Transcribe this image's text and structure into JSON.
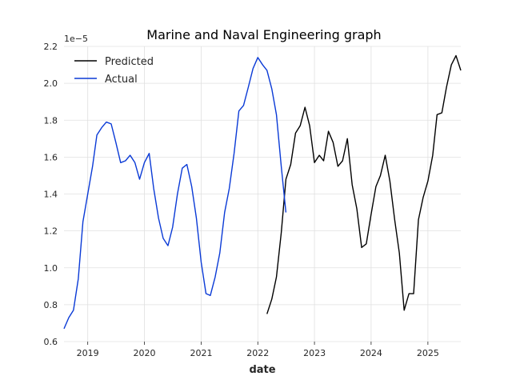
{
  "chart_data": {
    "type": "line",
    "title": "Marine and Naval Engineering graph",
    "xlabel": "date",
    "ylabel": "",
    "y_offset_label": "1e−5",
    "y_scale_multiplier": 1e-05,
    "xlim": [
      "2018-08-01",
      "2025-08-01"
    ],
    "ylim": [
      0.6,
      2.2
    ],
    "x_ticks": [
      "2019",
      "2020",
      "2021",
      "2022",
      "2023",
      "2024",
      "2025"
    ],
    "y_ticks": [
      "0.6",
      "0.8",
      "1.0",
      "1.2",
      "1.4",
      "1.6",
      "1.8",
      "2.0",
      "2.2"
    ],
    "grid": true,
    "legend_position": "top-left",
    "series": [
      {
        "name": "Predicted",
        "color": "#000000",
        "x": [
          "2022-03-01",
          "2022-04-01",
          "2022-05-01",
          "2022-06-01",
          "2022-07-01",
          "2022-08-01",
          "2022-09-01",
          "2022-10-01",
          "2022-11-01",
          "2022-12-01",
          "2023-01-01",
          "2023-02-01",
          "2023-03-01",
          "2023-04-01",
          "2023-05-01",
          "2023-06-01",
          "2023-07-01",
          "2023-08-01",
          "2023-09-01",
          "2023-10-01",
          "2023-11-01",
          "2023-12-01",
          "2024-01-01",
          "2024-02-01",
          "2024-03-01",
          "2024-04-01",
          "2024-05-01",
          "2024-06-01",
          "2024-07-01",
          "2024-08-01",
          "2024-09-01",
          "2024-10-01",
          "2024-11-01",
          "2024-12-01",
          "2025-01-01",
          "2025-02-01",
          "2025-03-01",
          "2025-04-01",
          "2025-05-01",
          "2025-06-01",
          "2025-07-01",
          "2025-08-01"
        ],
        "values": [
          0.75,
          0.83,
          0.95,
          1.19,
          1.48,
          1.56,
          1.73,
          1.77,
          1.87,
          1.77,
          1.57,
          1.61,
          1.58,
          1.74,
          1.68,
          1.55,
          1.58,
          1.7,
          1.45,
          1.32,
          1.11,
          1.13,
          1.29,
          1.44,
          1.5,
          1.61,
          1.47,
          1.26,
          1.08,
          0.77,
          0.86,
          0.86,
          1.26,
          1.38,
          1.47,
          1.61,
          1.83,
          1.84,
          1.98,
          2.1,
          2.15,
          2.07
        ]
      },
      {
        "name": "Actual",
        "color": "#0a3ad6",
        "x": [
          "2018-08-01",
          "2018-09-01",
          "2018-10-01",
          "2018-11-01",
          "2018-12-01",
          "2019-01-01",
          "2019-02-01",
          "2019-03-01",
          "2019-04-01",
          "2019-05-01",
          "2019-06-01",
          "2019-07-01",
          "2019-08-01",
          "2019-09-01",
          "2019-10-01",
          "2019-11-01",
          "2019-12-01",
          "2020-01-01",
          "2020-02-01",
          "2020-03-01",
          "2020-04-01",
          "2020-05-01",
          "2020-06-01",
          "2020-07-01",
          "2020-08-01",
          "2020-09-01",
          "2020-10-01",
          "2020-11-01",
          "2020-12-01",
          "2021-01-01",
          "2021-02-01",
          "2021-03-01",
          "2021-04-01",
          "2021-05-01",
          "2021-06-01",
          "2021-07-01",
          "2021-08-01",
          "2021-09-01",
          "2021-10-01",
          "2021-11-01",
          "2021-12-01",
          "2022-01-01",
          "2022-02-01",
          "2022-03-01",
          "2022-04-01",
          "2022-05-01",
          "2022-06-01",
          "2022-07-01"
        ],
        "values": [
          0.67,
          0.73,
          0.77,
          0.94,
          1.25,
          1.4,
          1.55,
          1.72,
          1.76,
          1.79,
          1.78,
          1.68,
          1.57,
          1.58,
          1.61,
          1.57,
          1.48,
          1.57,
          1.62,
          1.43,
          1.27,
          1.16,
          1.12,
          1.22,
          1.4,
          1.54,
          1.56,
          1.44,
          1.27,
          1.03,
          0.86,
          0.85,
          0.95,
          1.08,
          1.3,
          1.43,
          1.62,
          1.85,
          1.88,
          1.98,
          2.08,
          2.14,
          2.1,
          2.07,
          1.97,
          1.83,
          1.55,
          1.3
        ]
      }
    ]
  }
}
